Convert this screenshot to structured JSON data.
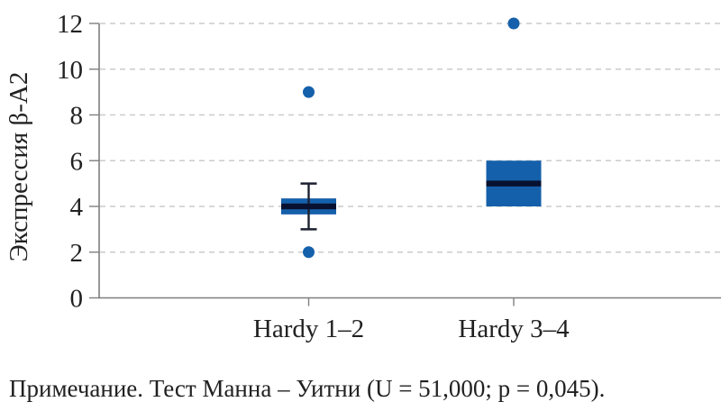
{
  "note": {
    "text": "Примечание. Тест Манна – Уитни (U = 51,000; p = 0,045)."
  },
  "chart_data": {
    "type": "boxplot",
    "title": "",
    "xlabel": "",
    "ylabel": "Экспрессия β-А2",
    "ylim": [
      0,
      12
    ],
    "yticks": [
      0,
      2,
      4,
      6,
      8,
      10,
      12
    ],
    "grid": "horizontal-dashed",
    "legend": "none",
    "categories": [
      "Hardy 1–2",
      "Hardy 3–4"
    ],
    "series": [
      {
        "category": "Hardy 1–2",
        "whisker_low": 3,
        "q1": 3.65,
        "median": 4,
        "q3": 4.35,
        "whisker_high": 5,
        "outliers": [
          2,
          9
        ]
      },
      {
        "category": "Hardy 3–4",
        "whisker_low": 4,
        "q1": 4,
        "median": 5,
        "q3": 6,
        "whisker_high": 6,
        "outliers": [
          12
        ]
      }
    ],
    "annotation": "Тест Манна – Уитни (U = 51,000; p = 0,045)",
    "colors": {
      "box_fill": "#1560AB",
      "median": "#081130",
      "whisker": "#1C2130",
      "outlier": "#1560AB",
      "axis": "#7F7F7F",
      "gridline": "#CBCBCB",
      "text": "#212121"
    }
  }
}
